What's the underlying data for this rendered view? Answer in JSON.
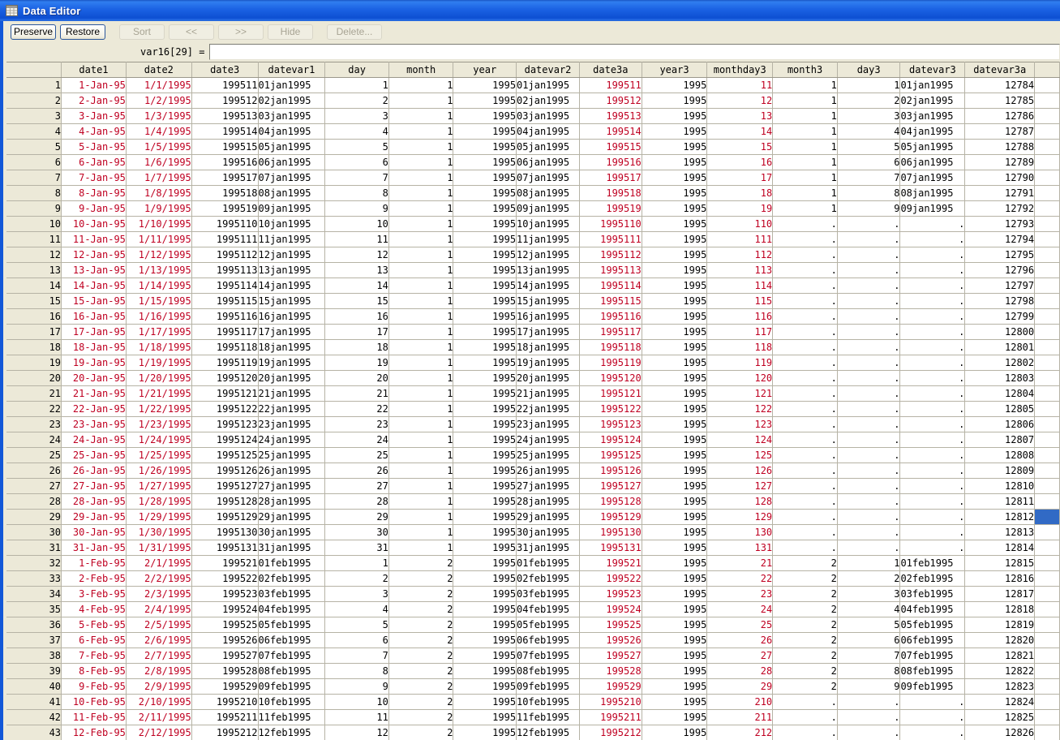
{
  "window": {
    "title": "Data Editor"
  },
  "toolbar": {
    "buttons": [
      {
        "label": "Preserve",
        "enabled": true
      },
      {
        "label": "Restore",
        "enabled": true
      },
      {
        "label": "Sort",
        "enabled": false
      },
      {
        "label": "<<",
        "enabled": false
      },
      {
        "label": ">>",
        "enabled": false
      },
      {
        "label": "Hide",
        "enabled": false
      },
      {
        "label": "Delete...",
        "enabled": false
      }
    ]
  },
  "cell_editor": {
    "reference": "var16[29] =",
    "value": ""
  },
  "selection": {
    "row": 29,
    "column": "var16"
  },
  "colors": {
    "string_text": "#bf0021",
    "selection_blue": "#316ac5",
    "titlebar_blue": "#1c63e4",
    "chrome": "#ece9d8"
  },
  "table": {
    "columns": [
      {
        "label": "date1",
        "width": 80,
        "align": "right",
        "color": "red"
      },
      {
        "label": "date2",
        "width": 81,
        "align": "right",
        "color": "red"
      },
      {
        "label": "date3",
        "width": 82,
        "align": "right",
        "color": "black"
      },
      {
        "label": "datevar1",
        "width": 83,
        "align": "left",
        "color": "black"
      },
      {
        "label": "day",
        "width": 79,
        "align": "right",
        "color": "black"
      },
      {
        "label": "month",
        "width": 80,
        "align": "right",
        "color": "black"
      },
      {
        "label": "year",
        "width": 78,
        "align": "right",
        "color": "black"
      },
      {
        "label": "datevar2",
        "width": 78,
        "align": "left",
        "color": "black"
      },
      {
        "label": "date3a",
        "width": 77,
        "align": "right",
        "color": "red"
      },
      {
        "label": "year3",
        "width": 81,
        "align": "right",
        "color": "black"
      },
      {
        "label": "monthday3",
        "width": 81,
        "align": "right",
        "color": "red"
      },
      {
        "label": "month3",
        "width": 80,
        "align": "right",
        "color": "black"
      },
      {
        "label": "day3",
        "width": 78,
        "align": "right",
        "color": "black"
      },
      {
        "label": "datevar3",
        "width": 80,
        "align": "left",
        "color": "black"
      },
      {
        "label": "datevar3a",
        "width": 86,
        "align": "right",
        "color": "black"
      }
    ],
    "trailing_column": {
      "label": "",
      "width": 31
    },
    "rows": [
      [
        1,
        "1-Jan-95",
        "1/1/1995",
        "199511",
        "01jan1995",
        1,
        1,
        1995,
        "01jan1995",
        "199511",
        1995,
        "11",
        1,
        1,
        "01jan1995",
        12784
      ],
      [
        2,
        "2-Jan-95",
        "1/2/1995",
        "199512",
        "02jan1995",
        2,
        1,
        1995,
        "02jan1995",
        "199512",
        1995,
        "12",
        1,
        2,
        "02jan1995",
        12785
      ],
      [
        3,
        "3-Jan-95",
        "1/3/1995",
        "199513",
        "03jan1995",
        3,
        1,
        1995,
        "03jan1995",
        "199513",
        1995,
        "13",
        1,
        3,
        "03jan1995",
        12786
      ],
      [
        4,
        "4-Jan-95",
        "1/4/1995",
        "199514",
        "04jan1995",
        4,
        1,
        1995,
        "04jan1995",
        "199514",
        1995,
        "14",
        1,
        4,
        "04jan1995",
        12787
      ],
      [
        5,
        "5-Jan-95",
        "1/5/1995",
        "199515",
        "05jan1995",
        5,
        1,
        1995,
        "05jan1995",
        "199515",
        1995,
        "15",
        1,
        5,
        "05jan1995",
        12788
      ],
      [
        6,
        "6-Jan-95",
        "1/6/1995",
        "199516",
        "06jan1995",
        6,
        1,
        1995,
        "06jan1995",
        "199516",
        1995,
        "16",
        1,
        6,
        "06jan1995",
        12789
      ],
      [
        7,
        "7-Jan-95",
        "1/7/1995",
        "199517",
        "07jan1995",
        7,
        1,
        1995,
        "07jan1995",
        "199517",
        1995,
        "17",
        1,
        7,
        "07jan1995",
        12790
      ],
      [
        8,
        "8-Jan-95",
        "1/8/1995",
        "199518",
        "08jan1995",
        8,
        1,
        1995,
        "08jan1995",
        "199518",
        1995,
        "18",
        1,
        8,
        "08jan1995",
        12791
      ],
      [
        9,
        "9-Jan-95",
        "1/9/1995",
        "199519",
        "09jan1995",
        9,
        1,
        1995,
        "09jan1995",
        "199519",
        1995,
        "19",
        1,
        9,
        "09jan1995",
        12792
      ],
      [
        10,
        "10-Jan-95",
        "1/10/1995",
        "1995110",
        "10jan1995",
        10,
        1,
        1995,
        "10jan1995",
        "1995110",
        1995,
        "110",
        ".",
        ".",
        ".",
        12793
      ],
      [
        11,
        "11-Jan-95",
        "1/11/1995",
        "1995111",
        "11jan1995",
        11,
        1,
        1995,
        "11jan1995",
        "1995111",
        1995,
        "111",
        ".",
        ".",
        ".",
        12794
      ],
      [
        12,
        "12-Jan-95",
        "1/12/1995",
        "1995112",
        "12jan1995",
        12,
        1,
        1995,
        "12jan1995",
        "1995112",
        1995,
        "112",
        ".",
        ".",
        ".",
        12795
      ],
      [
        13,
        "13-Jan-95",
        "1/13/1995",
        "1995113",
        "13jan1995",
        13,
        1,
        1995,
        "13jan1995",
        "1995113",
        1995,
        "113",
        ".",
        ".",
        ".",
        12796
      ],
      [
        14,
        "14-Jan-95",
        "1/14/1995",
        "1995114",
        "14jan1995",
        14,
        1,
        1995,
        "14jan1995",
        "1995114",
        1995,
        "114",
        ".",
        ".",
        ".",
        12797
      ],
      [
        15,
        "15-Jan-95",
        "1/15/1995",
        "1995115",
        "15jan1995",
        15,
        1,
        1995,
        "15jan1995",
        "1995115",
        1995,
        "115",
        ".",
        ".",
        ".",
        12798
      ],
      [
        16,
        "16-Jan-95",
        "1/16/1995",
        "1995116",
        "16jan1995",
        16,
        1,
        1995,
        "16jan1995",
        "1995116",
        1995,
        "116",
        ".",
        ".",
        ".",
        12799
      ],
      [
        17,
        "17-Jan-95",
        "1/17/1995",
        "1995117",
        "17jan1995",
        17,
        1,
        1995,
        "17jan1995",
        "1995117",
        1995,
        "117",
        ".",
        ".",
        ".",
        12800
      ],
      [
        18,
        "18-Jan-95",
        "1/18/1995",
        "1995118",
        "18jan1995",
        18,
        1,
        1995,
        "18jan1995",
        "1995118",
        1995,
        "118",
        ".",
        ".",
        ".",
        12801
      ],
      [
        19,
        "19-Jan-95",
        "1/19/1995",
        "1995119",
        "19jan1995",
        19,
        1,
        1995,
        "19jan1995",
        "1995119",
        1995,
        "119",
        ".",
        ".",
        ".",
        12802
      ],
      [
        20,
        "20-Jan-95",
        "1/20/1995",
        "1995120",
        "20jan1995",
        20,
        1,
        1995,
        "20jan1995",
        "1995120",
        1995,
        "120",
        ".",
        ".",
        ".",
        12803
      ],
      [
        21,
        "21-Jan-95",
        "1/21/1995",
        "1995121",
        "21jan1995",
        21,
        1,
        1995,
        "21jan1995",
        "1995121",
        1995,
        "121",
        ".",
        ".",
        ".",
        12804
      ],
      [
        22,
        "22-Jan-95",
        "1/22/1995",
        "1995122",
        "22jan1995",
        22,
        1,
        1995,
        "22jan1995",
        "1995122",
        1995,
        "122",
        ".",
        ".",
        ".",
        12805
      ],
      [
        23,
        "23-Jan-95",
        "1/23/1995",
        "1995123",
        "23jan1995",
        23,
        1,
        1995,
        "23jan1995",
        "1995123",
        1995,
        "123",
        ".",
        ".",
        ".",
        12806
      ],
      [
        24,
        "24-Jan-95",
        "1/24/1995",
        "1995124",
        "24jan1995",
        24,
        1,
        1995,
        "24jan1995",
        "1995124",
        1995,
        "124",
        ".",
        ".",
        ".",
        12807
      ],
      [
        25,
        "25-Jan-95",
        "1/25/1995",
        "1995125",
        "25jan1995",
        25,
        1,
        1995,
        "25jan1995",
        "1995125",
        1995,
        "125",
        ".",
        ".",
        ".",
        12808
      ],
      [
        26,
        "26-Jan-95",
        "1/26/1995",
        "1995126",
        "26jan1995",
        26,
        1,
        1995,
        "26jan1995",
        "1995126",
        1995,
        "126",
        ".",
        ".",
        ".",
        12809
      ],
      [
        27,
        "27-Jan-95",
        "1/27/1995",
        "1995127",
        "27jan1995",
        27,
        1,
        1995,
        "27jan1995",
        "1995127",
        1995,
        "127",
        ".",
        ".",
        ".",
        12810
      ],
      [
        28,
        "28-Jan-95",
        "1/28/1995",
        "1995128",
        "28jan1995",
        28,
        1,
        1995,
        "28jan1995",
        "1995128",
        1995,
        "128",
        ".",
        ".",
        ".",
        12811
      ],
      [
        29,
        "29-Jan-95",
        "1/29/1995",
        "1995129",
        "29jan1995",
        29,
        1,
        1995,
        "29jan1995",
        "1995129",
        1995,
        "129",
        ".",
        ".",
        ".",
        12812
      ],
      [
        30,
        "30-Jan-95",
        "1/30/1995",
        "1995130",
        "30jan1995",
        30,
        1,
        1995,
        "30jan1995",
        "1995130",
        1995,
        "130",
        ".",
        ".",
        ".",
        12813
      ],
      [
        31,
        "31-Jan-95",
        "1/31/1995",
        "1995131",
        "31jan1995",
        31,
        1,
        1995,
        "31jan1995",
        "1995131",
        1995,
        "131",
        ".",
        ".",
        ".",
        12814
      ],
      [
        32,
        "1-Feb-95",
        "2/1/1995",
        "199521",
        "01feb1995",
        1,
        2,
        1995,
        "01feb1995",
        "199521",
        1995,
        "21",
        2,
        1,
        "01feb1995",
        12815
      ],
      [
        33,
        "2-Feb-95",
        "2/2/1995",
        "199522",
        "02feb1995",
        2,
        2,
        1995,
        "02feb1995",
        "199522",
        1995,
        "22",
        2,
        2,
        "02feb1995",
        12816
      ],
      [
        34,
        "3-Feb-95",
        "2/3/1995",
        "199523",
        "03feb1995",
        3,
        2,
        1995,
        "03feb1995",
        "199523",
        1995,
        "23",
        2,
        3,
        "03feb1995",
        12817
      ],
      [
        35,
        "4-Feb-95",
        "2/4/1995",
        "199524",
        "04feb1995",
        4,
        2,
        1995,
        "04feb1995",
        "199524",
        1995,
        "24",
        2,
        4,
        "04feb1995",
        12818
      ],
      [
        36,
        "5-Feb-95",
        "2/5/1995",
        "199525",
        "05feb1995",
        5,
        2,
        1995,
        "05feb1995",
        "199525",
        1995,
        "25",
        2,
        5,
        "05feb1995",
        12819
      ],
      [
        37,
        "6-Feb-95",
        "2/6/1995",
        "199526",
        "06feb1995",
        6,
        2,
        1995,
        "06feb1995",
        "199526",
        1995,
        "26",
        2,
        6,
        "06feb1995",
        12820
      ],
      [
        38,
        "7-Feb-95",
        "2/7/1995",
        "199527",
        "07feb1995",
        7,
        2,
        1995,
        "07feb1995",
        "199527",
        1995,
        "27",
        2,
        7,
        "07feb1995",
        12821
      ],
      [
        39,
        "8-Feb-95",
        "2/8/1995",
        "199528",
        "08feb1995",
        8,
        2,
        1995,
        "08feb1995",
        "199528",
        1995,
        "28",
        2,
        8,
        "08feb1995",
        12822
      ],
      [
        40,
        "9-Feb-95",
        "2/9/1995",
        "199529",
        "09feb1995",
        9,
        2,
        1995,
        "09feb1995",
        "199529",
        1995,
        "29",
        2,
        9,
        "09feb1995",
        12823
      ],
      [
        41,
        "10-Feb-95",
        "2/10/1995",
        "1995210",
        "10feb1995",
        10,
        2,
        1995,
        "10feb1995",
        "1995210",
        1995,
        "210",
        ".",
        ".",
        ".",
        12824
      ],
      [
        42,
        "11-Feb-95",
        "2/11/1995",
        "1995211",
        "11feb1995",
        11,
        2,
        1995,
        "11feb1995",
        "1995211",
        1995,
        "211",
        ".",
        ".",
        ".",
        12825
      ],
      [
        43,
        "12-Feb-95",
        "2/12/1995",
        "1995212",
        "12feb1995",
        12,
        2,
        1995,
        "12feb1995",
        "1995212",
        1995,
        "212",
        ".",
        ".",
        ".",
        12826
      ]
    ]
  }
}
